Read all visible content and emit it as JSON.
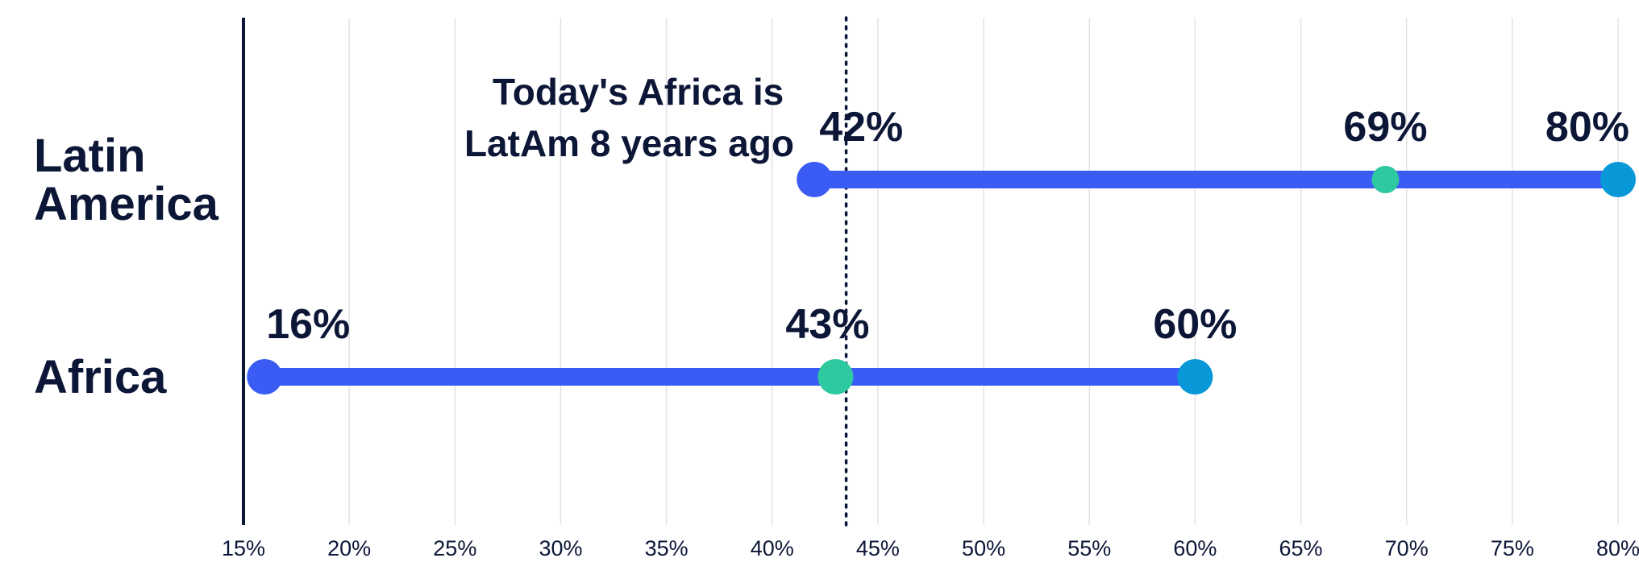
{
  "chart_data": {
    "type": "dot-range",
    "title": "",
    "xlabel": "",
    "ylabel": "",
    "xlim": [
      15,
      80
    ],
    "x_ticks": [
      15,
      20,
      25,
      30,
      35,
      40,
      45,
      50,
      55,
      60,
      65,
      70,
      75,
      80
    ],
    "x_tick_format": "percent",
    "grid": "vertical",
    "categories": [
      "Latin America",
      "Africa"
    ],
    "category_display": [
      [
        "Latin",
        "America"
      ],
      [
        "Africa"
      ]
    ],
    "points": [
      {
        "category": "Latin America",
        "values": [
          42,
          69,
          80
        ],
        "labels": [
          "42%",
          "69%",
          "80%"
        ]
      },
      {
        "category": "Africa",
        "values": [
          16,
          43,
          60
        ],
        "labels": [
          "16%",
          "43%",
          "60%"
        ]
      }
    ],
    "reference_line": {
      "x": 43.5,
      "style": "dotted"
    },
    "annotation": {
      "lines": [
        "Today's Africa is",
        "LatAm 8 years ago"
      ]
    },
    "colors": {
      "bar": "#3a5cf5",
      "start_dot": "#3a5cf5",
      "mid_dot": "#2ec9a0",
      "end_dot": "#0898d8",
      "axis": "#0c1637",
      "grid": "#e3e3e3",
      "text": "#0c1637"
    }
  }
}
